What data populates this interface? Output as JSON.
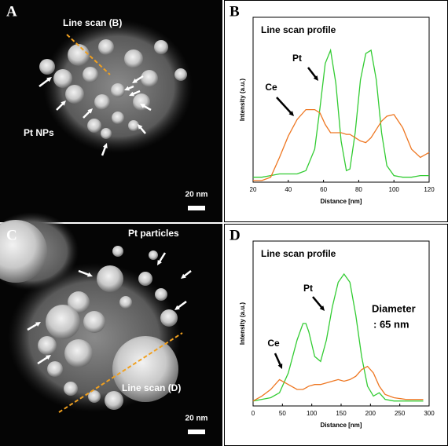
{
  "images": [
    {
      "letter": "A",
      "labels": [
        "Line scan (B)",
        "Pt NPs"
      ],
      "scale_bar": "20 nm"
    },
    {
      "letter": "C",
      "labels": [
        "Pt particles",
        "Line scan (D)"
      ],
      "scale_bar": "20 nm"
    }
  ],
  "chart_data": [
    {
      "type": "line",
      "panel_letter": "B",
      "title": "Line scan profile",
      "x_label": "Distance [nm]",
      "y_label": "Intensity (a.u.)",
      "x": [
        20,
        25,
        30,
        35,
        40,
        45,
        50,
        55,
        58,
        61,
        64,
        67,
        70,
        73,
        75,
        78,
        81,
        84,
        87,
        90,
        93,
        96,
        100,
        105,
        110,
        115,
        120
      ],
      "xlim": [
        20,
        120
      ],
      "xticks": [
        20,
        40,
        60,
        80,
        100,
        120
      ],
      "ylim": [
        0,
        1
      ],
      "series": [
        {
          "name": "Pt",
          "color": "#33cc33",
          "values": [
            0.03,
            0.03,
            0.04,
            0.05,
            0.05,
            0.05,
            0.07,
            0.2,
            0.45,
            0.72,
            0.8,
            0.6,
            0.25,
            0.07,
            0.08,
            0.3,
            0.62,
            0.78,
            0.8,
            0.62,
            0.3,
            0.1,
            0.04,
            0.03,
            0.03,
            0.04,
            0.04
          ]
        },
        {
          "name": "Ce",
          "color": "#ee7722",
          "values": [
            0.01,
            0.01,
            0.03,
            0.15,
            0.28,
            0.38,
            0.44,
            0.44,
            0.42,
            0.35,
            0.3,
            0.3,
            0.3,
            0.29,
            0.29,
            0.27,
            0.25,
            0.24,
            0.27,
            0.32,
            0.37,
            0.4,
            0.41,
            0.33,
            0.2,
            0.15,
            0.18
          ]
        }
      ]
    },
    {
      "type": "line",
      "panel_letter": "D",
      "title": "Line scan profile",
      "x_label": "Distance [nm]",
      "y_label": "Intensity (a.u.)",
      "x": [
        0,
        15,
        30,
        45,
        60,
        75,
        85,
        90,
        95,
        105,
        115,
        125,
        135,
        145,
        155,
        165,
        175,
        185,
        195,
        205,
        215,
        225,
        240,
        260,
        280,
        290
      ],
      "xlim": [
        0,
        300
      ],
      "xticks": [
        0,
        50,
        100,
        150,
        200,
        250,
        300
      ],
      "ylim": [
        0,
        1
      ],
      "annotations": [
        "Diameter",
        ": 65 nm"
      ],
      "series": [
        {
          "name": "Pt",
          "color": "#33cc33",
          "values": [
            0.03,
            0.04,
            0.05,
            0.08,
            0.2,
            0.4,
            0.5,
            0.5,
            0.45,
            0.3,
            0.27,
            0.4,
            0.6,
            0.75,
            0.8,
            0.75,
            0.55,
            0.3,
            0.12,
            0.06,
            0.08,
            0.04,
            0.03,
            0.03,
            0.03,
            0.03
          ]
        },
        {
          "name": "Ce",
          "color": "#ee7722",
          "values": [
            0.03,
            0.06,
            0.1,
            0.16,
            0.13,
            0.1,
            0.1,
            0.11,
            0.12,
            0.13,
            0.13,
            0.14,
            0.15,
            0.16,
            0.15,
            0.16,
            0.18,
            0.22,
            0.24,
            0.2,
            0.12,
            0.07,
            0.05,
            0.04,
            0.04,
            0.04
          ]
        }
      ]
    }
  ]
}
